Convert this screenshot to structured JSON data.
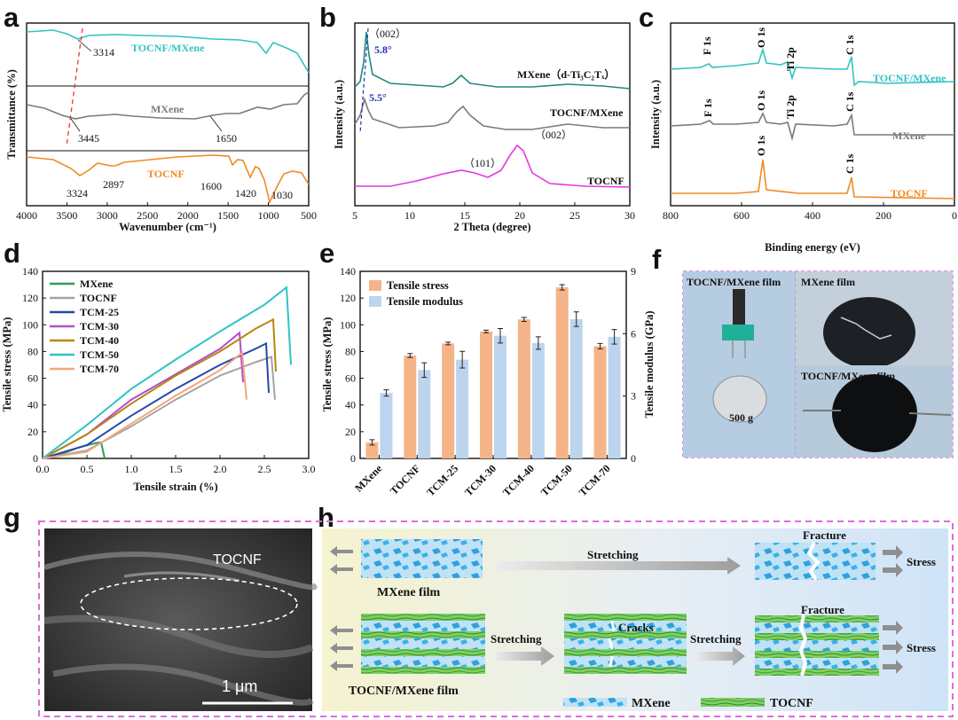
{
  "panel_labels": [
    "a",
    "b",
    "c",
    "d",
    "e",
    "f",
    "g",
    "h"
  ],
  "chart_data": [
    {
      "id": "a",
      "type": "line",
      "xlabel": "Wavenumber (cm⁻¹)",
      "ylabel": "Transmittance (%)",
      "xlim": [
        4000,
        500
      ],
      "xticks": [
        4000,
        3500,
        3000,
        2500,
        2000,
        1500,
        1000,
        500
      ],
      "series": [
        {
          "name": "TOCNF/MXene",
          "color": "#35c2c2",
          "peaks": [
            {
              "x": 3314,
              "label": "3314"
            }
          ]
        },
        {
          "name": "MXene",
          "color": "#7a7a7a",
          "peaks": [
            {
              "x": 3445,
              "label": "3445"
            },
            {
              "x": 1650,
              "label": "1650"
            }
          ]
        },
        {
          "name": "TOCNF",
          "color": "#f08a24",
          "peaks": [
            {
              "x": 3324,
              "label": "3324"
            },
            {
              "x": 2897,
              "label": "2897"
            },
            {
              "x": 1600,
              "label": "1600"
            },
            {
              "x": 1420,
              "label": "1420"
            },
            {
              "x": 1030,
              "label": "1030"
            }
          ]
        }
      ]
    },
    {
      "id": "b",
      "type": "line",
      "xlabel": "2 Theta (degree)",
      "ylabel": "Intensity (a.u.)",
      "xlim": [
        5,
        30
      ],
      "xticks": [
        5,
        10,
        15,
        20,
        25,
        30
      ],
      "series": [
        {
          "name": "MXene（d-Ti₃C₂Tₓ）",
          "color": "#1f8a7f"
        },
        {
          "name": "TOCNF/MXene",
          "color": "#7a7a7a"
        },
        {
          "name": "TOCNF",
          "color": "#e236e2"
        }
      ],
      "annotations": [
        "（002）",
        "5.8°",
        "5.5°",
        "（101）",
        "（002）"
      ]
    },
    {
      "id": "c",
      "type": "line",
      "xlabel": "Binding energy (eV)",
      "ylabel": "Intensity (a.u.)",
      "xlim": [
        800,
        0
      ],
      "xticks": [
        800,
        600,
        400,
        200,
        0
      ],
      "series": [
        {
          "name": "TOCNF/MXene",
          "color": "#35c2c2",
          "peaks": [
            "F 1s",
            "O 1s",
            "Ti 2p",
            "C 1s"
          ]
        },
        {
          "name": "MXene",
          "color": "#7a7a7a",
          "peaks": [
            "F 1s",
            "O 1s",
            "Ti 2p",
            "C 1s"
          ]
        },
        {
          "name": "TOCNF",
          "color": "#f08a24",
          "peaks": [
            "O 1s",
            "C 1s"
          ]
        }
      ]
    },
    {
      "id": "d",
      "type": "line",
      "xlabel": "Tensile strain (%)",
      "ylabel": "Tensile stress (MPa)",
      "xlim": [
        0,
        3.0
      ],
      "ylim": [
        0,
        140
      ],
      "xticks": [
        0.0,
        0.5,
        1.0,
        1.5,
        2.0,
        2.5,
        3.0
      ],
      "yticks": [
        0,
        20,
        40,
        60,
        80,
        100,
        120,
        140
      ],
      "series": [
        {
          "name": "MXene",
          "color": "#2e9e57",
          "points": [
            [
              0,
              0
            ],
            [
              0.2,
              3
            ],
            [
              0.4,
              8
            ],
            [
              0.6,
              11.5
            ],
            [
              0.66,
              12
            ],
            [
              0.7,
              0
            ]
          ]
        },
        {
          "name": "TOCNF",
          "color": "#a3a3a3",
          "points": [
            [
              0,
              0
            ],
            [
              0.5,
              6
            ],
            [
              1.0,
              24
            ],
            [
              1.5,
              44
            ],
            [
              2.0,
              62
            ],
            [
              2.4,
              72
            ],
            [
              2.58,
              76
            ],
            [
              2.62,
              44
            ]
          ]
        },
        {
          "name": "TCM-25",
          "color": "#2449a8",
          "points": [
            [
              0,
              0
            ],
            [
              0.5,
              10
            ],
            [
              1.0,
              32
            ],
            [
              1.5,
              52
            ],
            [
              2.0,
              70
            ],
            [
              2.4,
              82
            ],
            [
              2.52,
              86
            ],
            [
              2.55,
              49
            ]
          ]
        },
        {
          "name": "TCM-30",
          "color": "#b04fd0",
          "points": [
            [
              0,
              0
            ],
            [
              0.5,
              18
            ],
            [
              1.0,
              44
            ],
            [
              1.5,
              63
            ],
            [
              2.0,
              82
            ],
            [
              2.22,
              94
            ],
            [
              2.26,
              57
            ]
          ]
        },
        {
          "name": "TCM-40",
          "color": "#b8860b",
          "points": [
            [
              0,
              0
            ],
            [
              0.5,
              18
            ],
            [
              1.0,
              41
            ],
            [
              1.5,
              62
            ],
            [
              2.0,
              80
            ],
            [
              2.4,
              97
            ],
            [
              2.6,
              104
            ],
            [
              2.63,
              65
            ]
          ]
        },
        {
          "name": "TCM-50",
          "color": "#2ec4c4",
          "points": [
            [
              0,
              0
            ],
            [
              0.5,
              25
            ],
            [
              1.0,
              52
            ],
            [
              1.5,
              74
            ],
            [
              2.0,
              95
            ],
            [
              2.5,
              115
            ],
            [
              2.75,
              128
            ],
            [
              2.8,
              70
            ]
          ]
        },
        {
          "name": "TCM-70",
          "color": "#f5a57a",
          "points": [
            [
              0,
              0
            ],
            [
              0.5,
              5
            ],
            [
              1.0,
              26
            ],
            [
              1.5,
              47
            ],
            [
              2.0,
              66
            ],
            [
              2.25,
              79
            ],
            [
              2.3,
              44
            ]
          ]
        }
      ]
    },
    {
      "id": "e",
      "type": "bar",
      "categories": [
        "MXene",
        "TOCNF",
        "TCM-25",
        "TCM-30",
        "TCM-40",
        "TCM-50",
        "TCM-70"
      ],
      "ylabel": "Tensile stress (MPa)",
      "y2label": "Tensile modulus (GPa)",
      "ylim": [
        0,
        140
      ],
      "y2lim": [
        0,
        9
      ],
      "yticks": [
        0,
        20,
        40,
        60,
        80,
        100,
        120,
        140
      ],
      "y2ticks": [
        0,
        3,
        6,
        9
      ],
      "series": [
        {
          "name": "Tensile stress",
          "axis": "left",
          "color": "#f5b488",
          "values": [
            12,
            77,
            86,
            95,
            104,
            128,
            84
          ],
          "errors": [
            2,
            1.5,
            1,
            1,
            1.5,
            2,
            2
          ]
        },
        {
          "name": "Tensile modulus",
          "axis": "right",
          "color": "#bcd4ee",
          "values": [
            3.15,
            4.25,
            4.75,
            5.9,
            5.55,
            6.7,
            5.85
          ],
          "errors": [
            0.15,
            0.35,
            0.4,
            0.35,
            0.3,
            0.35,
            0.35
          ]
        }
      ]
    }
  ],
  "panel_f": {
    "labels": [
      "TOCNF/MXene film",
      "MXene film",
      "TOCNF/MXene film",
      "500 g"
    ]
  },
  "panel_g": {
    "labels": [
      "TOCNF",
      "1 μm"
    ]
  },
  "panel_h": {
    "row1": {
      "left": "MXene film",
      "arrow": "Stretching",
      "fracture": "Fracture",
      "stress": "Stress"
    },
    "row2": {
      "left": "TOCNF/MXene film",
      "arrow1": "Stretching",
      "cracks": "Cracks",
      "arrow2": "Stretching",
      "fracture": "Fracture",
      "stress": "Stress"
    },
    "legend": [
      "MXene",
      "TOCNF"
    ]
  }
}
